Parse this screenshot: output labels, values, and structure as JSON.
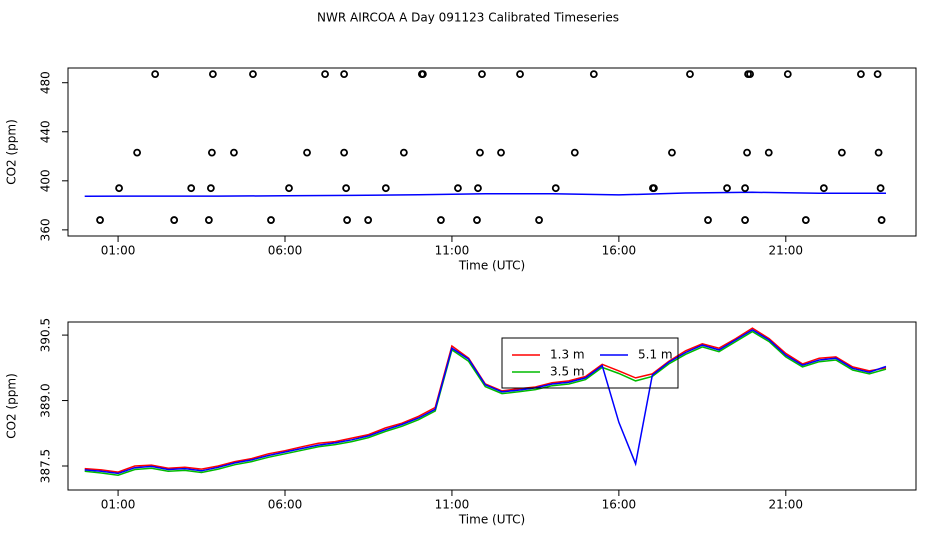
{
  "chart_data": [
    {
      "type": "scatter",
      "title": "NWR AIRCOA A  Day 091123  Calibrated Timeseries",
      "xlabel": "Time (UTC)",
      "ylabel": "CO2 (ppm)",
      "xlim": [
        -0.5,
        24.9
      ],
      "ylim": [
        355,
        492
      ],
      "xticks": [
        {
          "value": 1,
          "label": "01:00"
        },
        {
          "value": 6,
          "label": "06:00"
        },
        {
          "value": 11,
          "label": "11:00"
        },
        {
          "value": 16,
          "label": "16:00"
        },
        {
          "value": 21,
          "label": "21:00"
        }
      ],
      "yticks": [
        360,
        400,
        440,
        480
      ],
      "points": {
        "color": "#000000",
        "x": [
          0.46,
          1.03,
          1.57,
          2.11,
          2.68,
          3.19,
          3.72,
          3.78,
          3.81,
          3.84,
          4.47,
          5.04,
          5.58,
          6.12,
          6.66,
          7.2,
          7.77,
          7.77,
          7.83,
          7.86,
          8.49,
          9.02,
          9.56,
          10.1,
          10.13,
          10.67,
          11.18,
          11.75,
          11.78,
          11.84,
          11.9,
          12.47,
          13.04,
          13.61,
          14.11,
          14.68,
          15.25,
          17.02,
          17.05,
          17.59,
          18.13,
          18.67,
          19.24,
          19.78,
          19.78,
          19.84,
          19.87,
          19.93,
          20.49,
          21.06,
          21.6,
          22.14,
          22.68,
          23.25,
          23.75,
          23.78,
          23.84,
          23.87
        ],
        "values": [
          368,
          394,
          423,
          487,
          368,
          394,
          368,
          394,
          423,
          487,
          423,
          487,
          368,
          394,
          423,
          487,
          487,
          423,
          394,
          368,
          368,
          394,
          423,
          487,
          487,
          368,
          394,
          368,
          394,
          423,
          487,
          423,
          487,
          368,
          394,
          423,
          487,
          394,
          394,
          423,
          487,
          368,
          394,
          394,
          368,
          423,
          487,
          487,
          423,
          487,
          368,
          394,
          423,
          487,
          487,
          423,
          394,
          368
        ]
      },
      "series": [
        {
          "color": "#0000ff",
          "x": [
            0,
            2,
            4,
            6,
            8,
            10,
            12,
            14,
            16,
            18,
            20,
            22,
            24
          ],
          "values": [
            387.4,
            387.5,
            387.5,
            387.8,
            388.1,
            388.6,
            389.4,
            389.4,
            388.5,
            390.1,
            390.6,
            389.9,
            389.8
          ]
        }
      ]
    },
    {
      "type": "line",
      "xlabel": "Time (UTC)",
      "ylabel": "CO2 (ppm)",
      "xlim": [
        -0.5,
        24.9
      ],
      "ylim": [
        386.95,
        390.8
      ],
      "xticks": [
        {
          "value": 1,
          "label": "01:00"
        },
        {
          "value": 6,
          "label": "06:00"
        },
        {
          "value": 11,
          "label": "11:00"
        },
        {
          "value": 16,
          "label": "16:00"
        },
        {
          "value": 21,
          "label": "21:00"
        }
      ],
      "yticks": [
        387.5,
        {
          "value": 389,
          "label": "389.0"
        },
        390.5
      ],
      "x": [
        0,
        0.5,
        1,
        1.5,
        2,
        2.5,
        3,
        3.5,
        4,
        4.5,
        5,
        5.5,
        6,
        6.5,
        7,
        7.5,
        8,
        8.5,
        9,
        9.5,
        10,
        10.5,
        11,
        11.5,
        12,
        12.5,
        13,
        13.5,
        14,
        14.5,
        15,
        15.5,
        16,
        16.5,
        17,
        17.5,
        18,
        18.5,
        19,
        19.5,
        20,
        20.5,
        21,
        21.5,
        22,
        22.5,
        23,
        23.5,
        24
      ],
      "series": [
        {
          "name": "1.3 m",
          "color": "#ff0000",
          "values": [
            387.44,
            387.41,
            387.36,
            387.5,
            387.52,
            387.45,
            387.47,
            387.43,
            387.5,
            387.6,
            387.67,
            387.78,
            387.85,
            387.94,
            388.02,
            388.06,
            388.14,
            388.22,
            388.37,
            388.48,
            388.64,
            388.84,
            390.25,
            389.97,
            389.38,
            389.22,
            389.27,
            389.31,
            389.41,
            389.45,
            389.55,
            389.83,
            389.68,
            389.52,
            389.61,
            389.9,
            390.14,
            390.3,
            390.2,
            390.42,
            390.66,
            390.42,
            390.08,
            389.84,
            389.97,
            390.0,
            389.77,
            389.68,
            389.75
          ]
        },
        {
          "name": "3.5 m",
          "color": "#00bb00",
          "values": [
            387.38,
            387.34,
            387.29,
            387.42,
            387.45,
            387.38,
            387.4,
            387.35,
            387.43,
            387.53,
            387.6,
            387.7,
            387.78,
            387.86,
            387.94,
            387.99,
            388.06,
            388.15,
            388.29,
            388.41,
            388.56,
            388.76,
            390.16,
            389.9,
            389.32,
            389.16,
            389.2,
            389.25,
            389.34,
            389.38,
            389.48,
            389.76,
            389.62,
            389.45,
            389.55,
            389.84,
            390.06,
            390.23,
            390.12,
            390.35,
            390.58,
            390.35,
            390.0,
            389.77,
            389.89,
            389.93,
            389.7,
            389.61,
            389.72
          ]
        },
        {
          "name": "5.1 m",
          "color": "#0000ff",
          "values": [
            387.41,
            387.38,
            387.33,
            387.46,
            387.49,
            387.42,
            387.44,
            387.39,
            387.47,
            387.57,
            387.64,
            387.74,
            387.82,
            387.9,
            387.98,
            388.03,
            388.1,
            388.19,
            388.33,
            388.45,
            388.6,
            388.8,
            390.2,
            389.95,
            389.36,
            389.2,
            389.24,
            389.29,
            389.38,
            389.42,
            389.52,
            389.8,
            388.5,
            387.55,
            389.58,
            389.88,
            390.1,
            390.27,
            390.16,
            390.39,
            390.62,
            390.39,
            390.04,
            389.81,
            389.93,
            389.97,
            389.74,
            389.65,
            389.78
          ]
        }
      ]
    }
  ]
}
